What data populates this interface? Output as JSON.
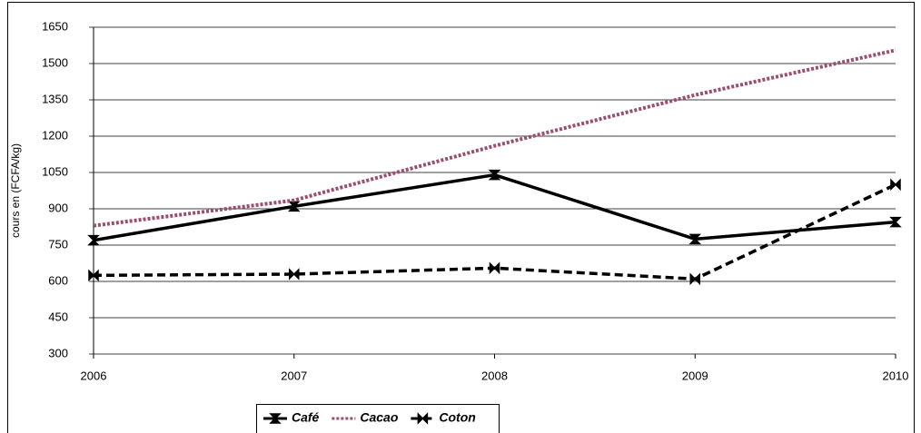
{
  "chart_data": {
    "type": "line",
    "y_label": "cours en (FCFA/kg)",
    "categories": [
      "2006",
      "2007",
      "2008",
      "2009",
      "2010"
    ],
    "series": [
      {
        "name": "Café",
        "color": "#000000",
        "dash": "solid",
        "marker": "vertical",
        "values": [
          770,
          910,
          1040,
          775,
          845
        ]
      },
      {
        "name": "Cacao",
        "color": "#9b4d6d",
        "dash": "dotted",
        "marker": "none",
        "values": [
          830,
          935,
          1160,
          1370,
          1555
        ]
      },
      {
        "name": "Coton",
        "color": "#000000",
        "dash": "dashed",
        "marker": "horizontal",
        "values": [
          625,
          630,
          655,
          610,
          1000
        ]
      }
    ],
    "ylim": [
      300,
      1650
    ],
    "yticks": [
      300,
      450,
      600,
      750,
      900,
      1050,
      1200,
      1350,
      1500,
      1650
    ],
    "grid": true,
    "legend": "bottom"
  }
}
